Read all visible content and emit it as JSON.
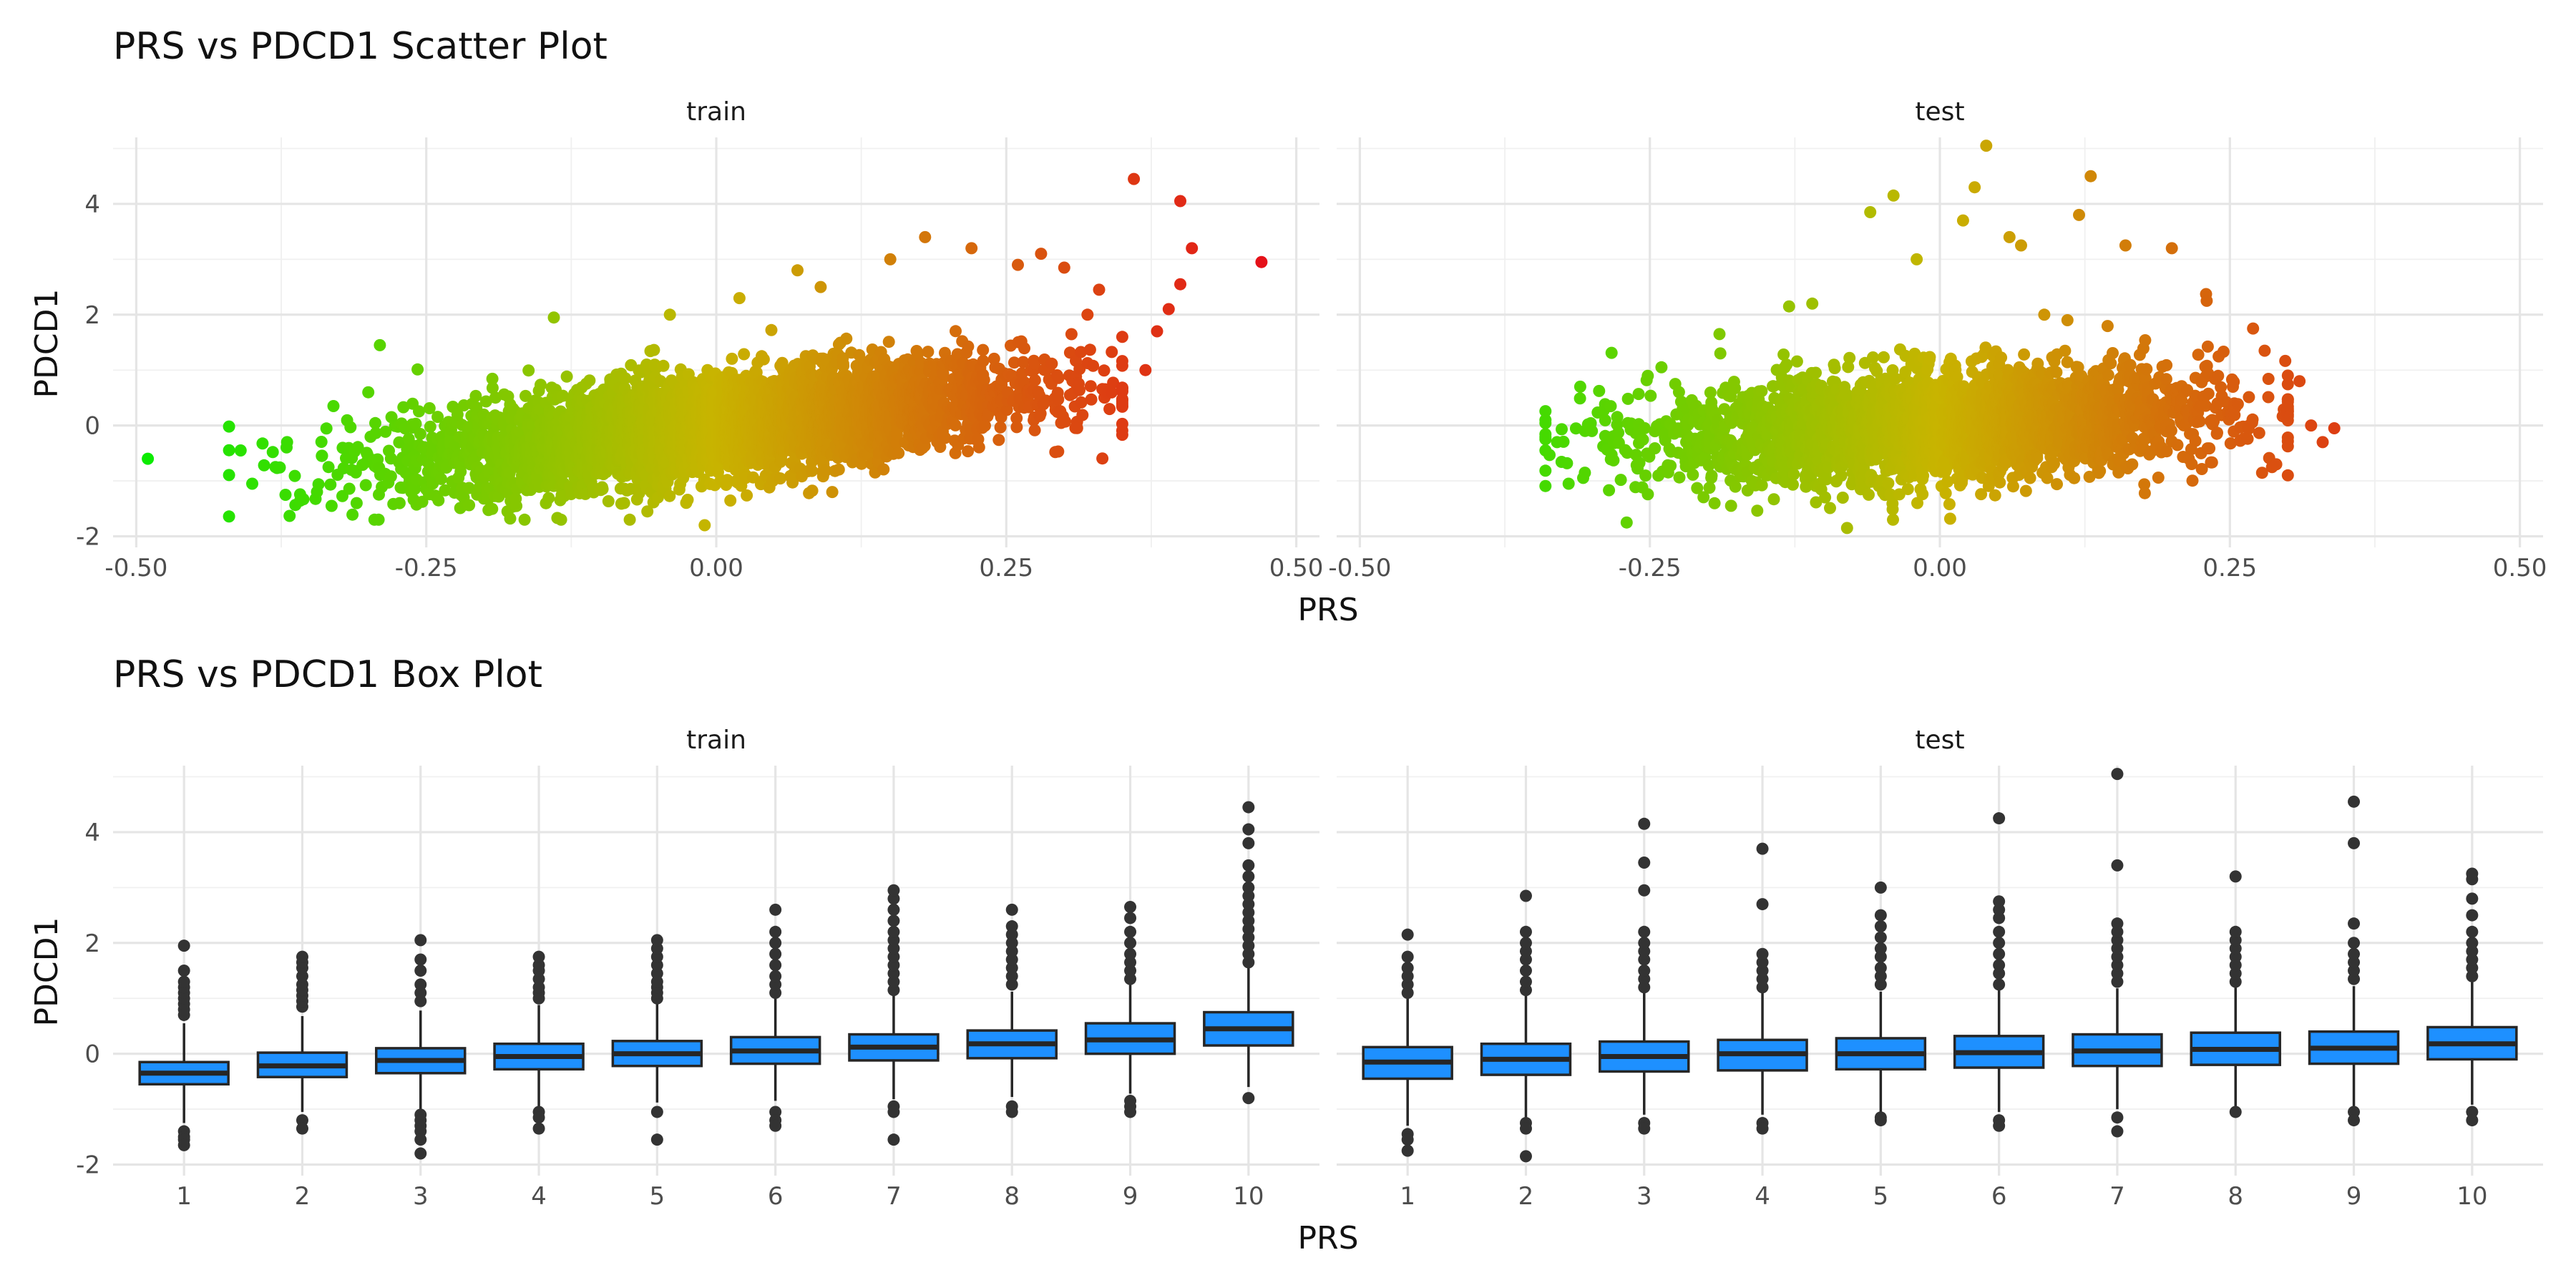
{
  "colors": {
    "low": "#00ee00",
    "mid": "#c8b400",
    "high": "#e8001c",
    "box_fill": "#1e90ff",
    "box_line": "#262626"
  },
  "chart_data": [
    {
      "type": "scatter",
      "title": "PRS vs PDCD1 Scatter Plot",
      "xlabel": "PRS",
      "ylabel": "PDCD1",
      "xlim": [
        -0.52,
        0.52
      ],
      "ylim": [
        -2.2,
        5.2
      ],
      "x_ticks": [
        -0.5,
        -0.25,
        0,
        0.25,
        0.5
      ],
      "x_tick_labels": [
        "-0.50",
        "-0.25",
        "0.00",
        "0.25",
        "0.50"
      ],
      "y_ticks": [
        -2,
        0,
        2,
        4
      ],
      "y_tick_labels": [
        "-2",
        "0",
        "2",
        "4"
      ],
      "grid": true,
      "color_by": "PRS",
      "panels": [
        {
          "label": "train",
          "cloud": {
            "x_center": 0,
            "x_sd": 0.13,
            "x_range": [
              -0.42,
              0.35
            ],
            "slope": 2.3,
            "resid_sd": 0.45
          },
          "points": [
            [
              -0.49,
              -0.6
            ],
            [
              -0.41,
              -0.45
            ],
            [
              -0.4,
              -1.05
            ],
            [
              -0.38,
              -0.75
            ],
            [
              -0.37,
              -0.3
            ],
            [
              -0.34,
              -0.55
            ],
            [
              -0.33,
              0.35
            ],
            [
              -0.31,
              -1.4
            ],
            [
              -0.3,
              0.6
            ],
            [
              -0.29,
              1.45
            ],
            [
              -0.28,
              0.15
            ],
            [
              -0.25,
              -1.15
            ],
            [
              -0.18,
              -1.55
            ],
            [
              -0.14,
              1.95
            ],
            [
              -0.06,
              1.1
            ],
            [
              -0.04,
              2.0
            ],
            [
              -0.01,
              -1.8
            ],
            [
              0.02,
              2.3
            ],
            [
              0.07,
              2.8
            ],
            [
              0.09,
              2.5
            ],
            [
              0.1,
              -1.2
            ],
            [
              0.15,
              3.0
            ],
            [
              0.18,
              3.4
            ],
            [
              0.22,
              3.2
            ],
            [
              0.26,
              2.9
            ],
            [
              0.28,
              3.1
            ],
            [
              0.3,
              2.85
            ],
            [
              0.32,
              2.0
            ],
            [
              0.33,
              2.45
            ],
            [
              0.35,
              1.6
            ],
            [
              0.36,
              4.45
            ],
            [
              0.37,
              1.0
            ],
            [
              0.38,
              1.7
            ],
            [
              0.39,
              2.1
            ],
            [
              0.4,
              4.05
            ],
            [
              0.41,
              3.2
            ],
            [
              0.4,
              2.55
            ],
            [
              0.47,
              2.95
            ]
          ]
        },
        {
          "label": "test",
          "cloud": {
            "x_center": 0,
            "x_sd": 0.12,
            "x_range": [
              -0.34,
              0.3
            ],
            "slope": 1.0,
            "resid_sd": 0.5
          },
          "points": [
            [
              -0.34,
              -0.45
            ],
            [
              -0.33,
              -0.3
            ],
            [
              -0.32,
              -1.05
            ],
            [
              -0.31,
              0.7
            ],
            [
              -0.3,
              -0.1
            ],
            [
              -0.27,
              -1.75
            ],
            [
              -0.24,
              1.05
            ],
            [
              -0.19,
              1.65
            ],
            [
              -0.18,
              -1.45
            ],
            [
              -0.13,
              2.15
            ],
            [
              -0.11,
              2.2
            ],
            [
              -0.08,
              -1.85
            ],
            [
              -0.06,
              3.85
            ],
            [
              -0.04,
              4.15
            ],
            [
              -0.02,
              3.0
            ],
            [
              0.02,
              3.7
            ],
            [
              0.03,
              4.3
            ],
            [
              0.04,
              5.05
            ],
            [
              0.06,
              3.4
            ],
            [
              0.07,
              3.25
            ],
            [
              0.09,
              2.0
            ],
            [
              0.11,
              1.9
            ],
            [
              0.12,
              3.8
            ],
            [
              0.13,
              4.5
            ],
            [
              0.16,
              3.25
            ],
            [
              0.2,
              3.2
            ],
            [
              0.23,
              2.25
            ],
            [
              0.27,
              1.75
            ],
            [
              0.28,
              1.35
            ],
            [
              0.29,
              -0.7
            ],
            [
              0.3,
              -0.9
            ],
            [
              0.31,
              0.8
            ],
            [
              0.32,
              0.0
            ],
            [
              0.33,
              -0.3
            ],
            [
              0.34,
              -0.05
            ]
          ]
        }
      ]
    },
    {
      "type": "box",
      "title": "PRS vs PDCD1 Box Plot",
      "xlabel": "PRS",
      "ylabel": "PDCD1",
      "categories": [
        "1",
        "2",
        "3",
        "4",
        "5",
        "6",
        "7",
        "8",
        "9",
        "10"
      ],
      "ylim": [
        -2.2,
        5.2
      ],
      "y_ticks": [
        -2,
        0,
        2,
        4
      ],
      "y_tick_labels": [
        "-2",
        "0",
        "2",
        "4"
      ],
      "grid": true,
      "panels": [
        {
          "label": "train",
          "boxes": [
            {
              "q1": -0.55,
              "median": -0.35,
              "q3": -0.15,
              "whisker_low": -1.25,
              "whisker_high": 0.55,
              "outliers_low": [
                -1.4,
                -1.5,
                -1.55,
                -1.65
              ],
              "outliers_high": [
                0.7,
                0.8,
                0.9,
                1.0,
                1.1,
                1.2,
                1.3,
                1.5,
                1.95
              ]
            },
            {
              "q1": -0.42,
              "median": -0.22,
              "q3": 0.02,
              "whisker_low": -1.05,
              "whisker_high": 0.68,
              "outliers_low": [
                -1.2,
                -1.35
              ],
              "outliers_high": [
                0.85,
                0.95,
                1.05,
                1.15,
                1.25,
                1.4,
                1.55,
                1.65,
                1.75
              ]
            },
            {
              "q1": -0.35,
              "median": -0.12,
              "q3": 0.1,
              "whisker_low": -1.0,
              "whisker_high": 0.78,
              "outliers_low": [
                -1.1,
                -1.2,
                -1.3,
                -1.4,
                -1.55,
                -1.8
              ],
              "outliers_high": [
                0.95,
                1.1,
                1.25,
                1.5,
                1.7,
                2.05
              ]
            },
            {
              "q1": -0.28,
              "median": -0.05,
              "q3": 0.18,
              "whisker_low": -0.95,
              "whisker_high": 0.88,
              "outliers_low": [
                -1.05,
                -1.15,
                -1.35
              ],
              "outliers_high": [
                1.0,
                1.1,
                1.2,
                1.35,
                1.5,
                1.6,
                1.75
              ]
            },
            {
              "q1": -0.22,
              "median": 0.0,
              "q3": 0.23,
              "whisker_low": -0.88,
              "whisker_high": 0.9,
              "outliers_low": [
                -1.05,
                -1.55
              ],
              "outliers_high": [
                1.0,
                1.1,
                1.2,
                1.3,
                1.45,
                1.6,
                1.75,
                1.9,
                2.05
              ]
            },
            {
              "q1": -0.18,
              "median": 0.05,
              "q3": 0.3,
              "whisker_low": -0.85,
              "whisker_high": 1.0,
              "outliers_low": [
                -1.05,
                -1.2,
                -1.3
              ],
              "outliers_high": [
                1.1,
                1.25,
                1.4,
                1.6,
                1.8,
                2.0,
                2.2,
                2.6
              ]
            },
            {
              "q1": -0.12,
              "median": 0.12,
              "q3": 0.35,
              "whisker_low": -0.82,
              "whisker_high": 1.05,
              "outliers_low": [
                -0.95,
                -1.05,
                -1.55
              ],
              "outliers_high": [
                1.15,
                1.3,
                1.45,
                1.6,
                1.75,
                1.9,
                2.05,
                2.2,
                2.4,
                2.6,
                2.8,
                2.95
              ]
            },
            {
              "q1": -0.08,
              "median": 0.18,
              "q3": 0.42,
              "whisker_low": -0.78,
              "whisker_high": 1.12,
              "outliers_low": [
                -0.95,
                -1.05
              ],
              "outliers_high": [
                1.25,
                1.4,
                1.55,
                1.7,
                1.85,
                2.0,
                2.15,
                2.3,
                2.6
              ]
            },
            {
              "q1": 0.0,
              "median": 0.25,
              "q3": 0.55,
              "whisker_low": -0.72,
              "whisker_high": 1.25,
              "outliers_low": [
                -0.85,
                -0.95,
                -1.05
              ],
              "outliers_high": [
                1.35,
                1.5,
                1.65,
                1.8,
                2.0,
                2.2,
                2.45,
                2.65
              ]
            },
            {
              "q1": 0.15,
              "median": 0.45,
              "q3": 0.75,
              "whisker_low": -0.6,
              "whisker_high": 1.55,
              "outliers_low": [
                -0.8
              ],
              "outliers_high": [
                1.65,
                1.8,
                1.95,
                2.1,
                2.25,
                2.4,
                2.55,
                2.7,
                2.85,
                3.0,
                3.2,
                3.4,
                3.8,
                4.05,
                4.45
              ]
            }
          ]
        },
        {
          "label": "test",
          "boxes": [
            {
              "q1": -0.45,
              "median": -0.15,
              "q3": 0.12,
              "whisker_low": -1.3,
              "whisker_high": 1.0,
              "outliers_low": [
                -1.45,
                -1.55,
                -1.75
              ],
              "outliers_high": [
                1.1,
                1.25,
                1.4,
                1.55,
                1.75,
                2.15
              ]
            },
            {
              "q1": -0.38,
              "median": -0.1,
              "q3": 0.18,
              "whisker_low": -1.15,
              "whisker_high": 1.05,
              "outliers_low": [
                -1.25,
                -1.35,
                -1.85
              ],
              "outliers_high": [
                1.15,
                1.3,
                1.5,
                1.7,
                1.85,
                2.0,
                2.2,
                2.85
              ]
            },
            {
              "q1": -0.32,
              "median": -0.05,
              "q3": 0.22,
              "whisker_low": -1.1,
              "whisker_high": 1.1,
              "outliers_low": [
                -1.25,
                -1.35
              ],
              "outliers_high": [
                1.2,
                1.35,
                1.5,
                1.7,
                1.85,
                2.0,
                2.2,
                2.95,
                3.45,
                4.15
              ]
            },
            {
              "q1": -0.3,
              "median": 0.0,
              "q3": 0.25,
              "whisker_low": -1.1,
              "whisker_high": 1.1,
              "outliers_low": [
                -1.25,
                -1.35
              ],
              "outliers_high": [
                1.2,
                1.35,
                1.5,
                1.65,
                1.8,
                2.7,
                3.7
              ]
            },
            {
              "q1": -0.28,
              "median": 0.0,
              "q3": 0.28,
              "whisker_low": -1.05,
              "whisker_high": 1.12,
              "outliers_low": [
                -1.15,
                -1.2
              ],
              "outliers_high": [
                1.25,
                1.4,
                1.55,
                1.75,
                1.9,
                2.1,
                2.3,
                2.5,
                3.0
              ]
            },
            {
              "q1": -0.25,
              "median": 0.02,
              "q3": 0.32,
              "whisker_low": -1.05,
              "whisker_high": 1.15,
              "outliers_low": [
                -1.2,
                -1.3
              ],
              "outliers_high": [
                1.25,
                1.45,
                1.6,
                1.8,
                2.0,
                2.2,
                2.45,
                2.6,
                2.75,
                4.25
              ]
            },
            {
              "q1": -0.22,
              "median": 0.05,
              "q3": 0.35,
              "whisker_low": -1.0,
              "whisker_high": 1.18,
              "outliers_low": [
                -1.15,
                -1.4
              ],
              "outliers_high": [
                1.3,
                1.45,
                1.6,
                1.75,
                1.9,
                2.05,
                2.2,
                2.35,
                3.4,
                5.05
              ]
            },
            {
              "q1": -0.2,
              "median": 0.08,
              "q3": 0.38,
              "whisker_low": -1.0,
              "whisker_high": 1.2,
              "outliers_low": [
                -1.05
              ],
              "outliers_high": [
                1.3,
                1.45,
                1.6,
                1.75,
                1.9,
                2.05,
                2.2,
                3.2
              ]
            },
            {
              "q1": -0.18,
              "median": 0.1,
              "q3": 0.4,
              "whisker_low": -0.95,
              "whisker_high": 1.22,
              "outliers_low": [
                -1.05,
                -1.2
              ],
              "outliers_high": [
                1.35,
                1.5,
                1.65,
                1.8,
                2.0,
                2.35,
                3.8,
                4.55
              ]
            },
            {
              "q1": -0.1,
              "median": 0.18,
              "q3": 0.48,
              "whisker_low": -0.92,
              "whisker_high": 1.3,
              "outliers_low": [
                -1.05,
                -1.2
              ],
              "outliers_high": [
                1.4,
                1.55,
                1.7,
                1.85,
                2.0,
                2.2,
                2.5,
                2.8,
                3.15,
                3.25
              ]
            }
          ]
        }
      ]
    }
  ]
}
